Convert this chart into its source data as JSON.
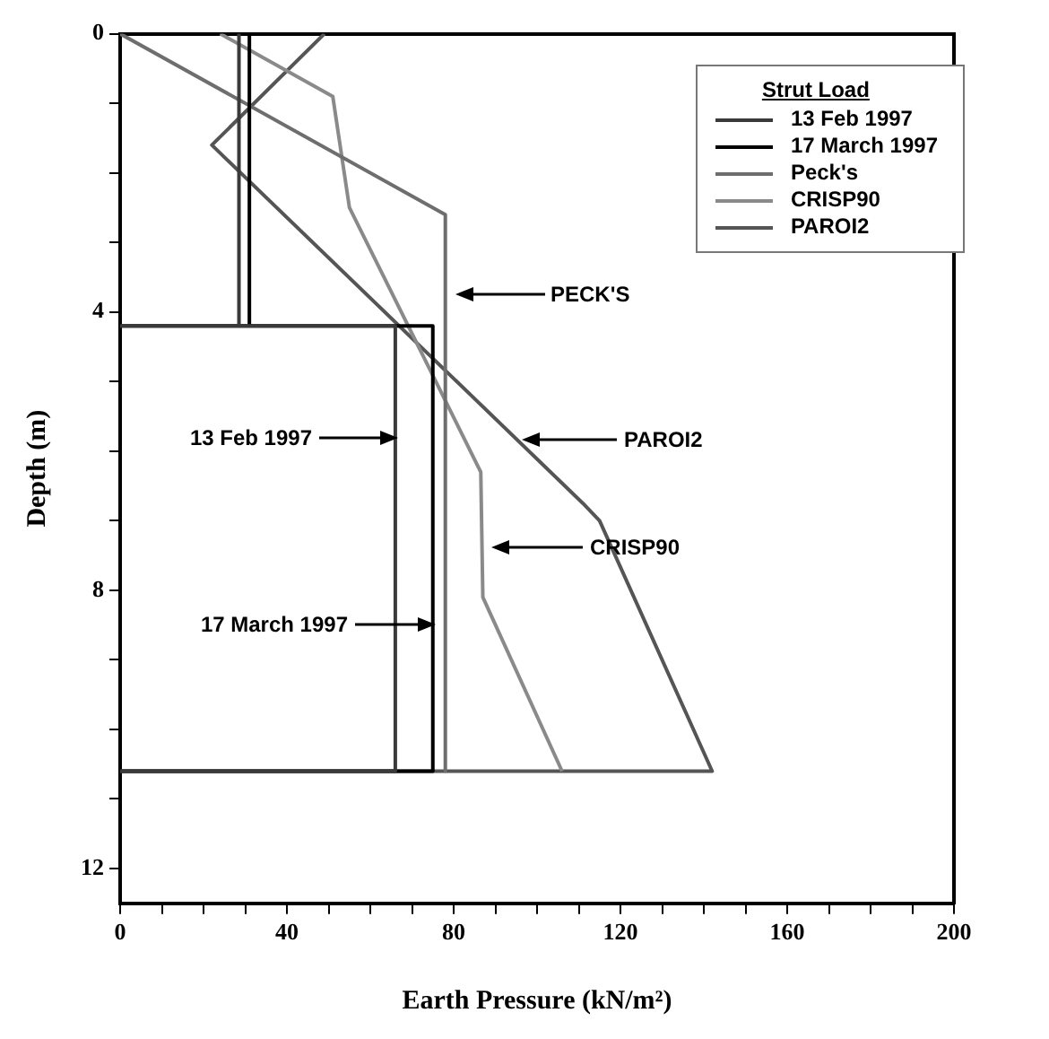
{
  "chart_data": {
    "type": "line",
    "xlabel": "Earth Pressure (kN/m²)",
    "ylabel": "Depth (m)",
    "legend_title": "Strut Load",
    "xlim": [
      0,
      200
    ],
    "ylim": [
      12.5,
      0
    ],
    "xticks": [
      0,
      {
        "value": 10,
        "label": null
      },
      40,
      {
        "value": 20,
        "label": null
      },
      {
        "value": 30,
        "label": null
      },
      {
        "value": 50,
        "label": null
      },
      {
        "value": 60,
        "label": null
      },
      {
        "value": 70,
        "label": null
      },
      80,
      {
        "value": 90,
        "label": null
      },
      {
        "value": 100,
        "label": null
      },
      {
        "value": 110,
        "label": null
      },
      120,
      {
        "value": 130,
        "label": null
      },
      {
        "value": 140,
        "label": null
      },
      {
        "value": 150,
        "label": null
      },
      160,
      {
        "value": 170,
        "label": null
      },
      {
        "value": 180,
        "label": null
      },
      {
        "value": 190,
        "label": null
      },
      200
    ],
    "yticks": [
      0,
      {
        "value": 1,
        "label": null
      },
      {
        "value": 2,
        "label": null
      },
      {
        "value": 3,
        "label": null
      },
      4,
      {
        "value": 5,
        "label": null
      },
      {
        "value": 6,
        "label": null
      },
      {
        "value": 7,
        "label": null
      },
      8,
      {
        "value": 9,
        "label": null
      },
      {
        "value": 10,
        "label": null
      },
      {
        "value": 11,
        "label": null
      },
      12
    ],
    "grid": false,
    "legend": "top right",
    "marker": "none",
    "line_style": "solid",
    "series": [
      {
        "name": "13 Feb 1997",
        "color": "#3a3a3a",
        "x": [
          28.5,
          28.5,
          0,
          66,
          66,
          0
        ],
        "values": [
          0,
          4.2,
          4.2,
          4.2,
          10.6,
          10.6
        ]
      },
      {
        "name": "17 March 1997",
        "color": "#000000",
        "x": [
          31,
          31,
          0,
          75,
          75,
          0
        ],
        "values": [
          0,
          4.2,
          4.2,
          4.2,
          10.6,
          10.6
        ]
      },
      {
        "name": "Peck's",
        "color": "#6e6e6e",
        "x": [
          0,
          78,
          78
        ],
        "values": [
          0,
          2.6,
          10.6
        ]
      },
      {
        "name": "CRISP90",
        "color": "#8a8a8a",
        "x": [
          24,
          51,
          55,
          86.5,
          87,
          106
        ],
        "values": [
          0,
          0.9,
          2.5,
          6.3,
          8.1,
          10.6
        ]
      },
      {
        "name": "PAROI2",
        "color": "#555555",
        "x": [
          49,
          22,
          111,
          115,
          142,
          0
        ],
        "values": [
          0,
          1.6,
          6.75,
          7.0,
          10.6,
          10.6
        ]
      }
    ],
    "annotations": [
      "PECK'S",
      "PAROI2",
      "CRISP90",
      "13 Feb 1997",
      "17 March 1997"
    ]
  }
}
